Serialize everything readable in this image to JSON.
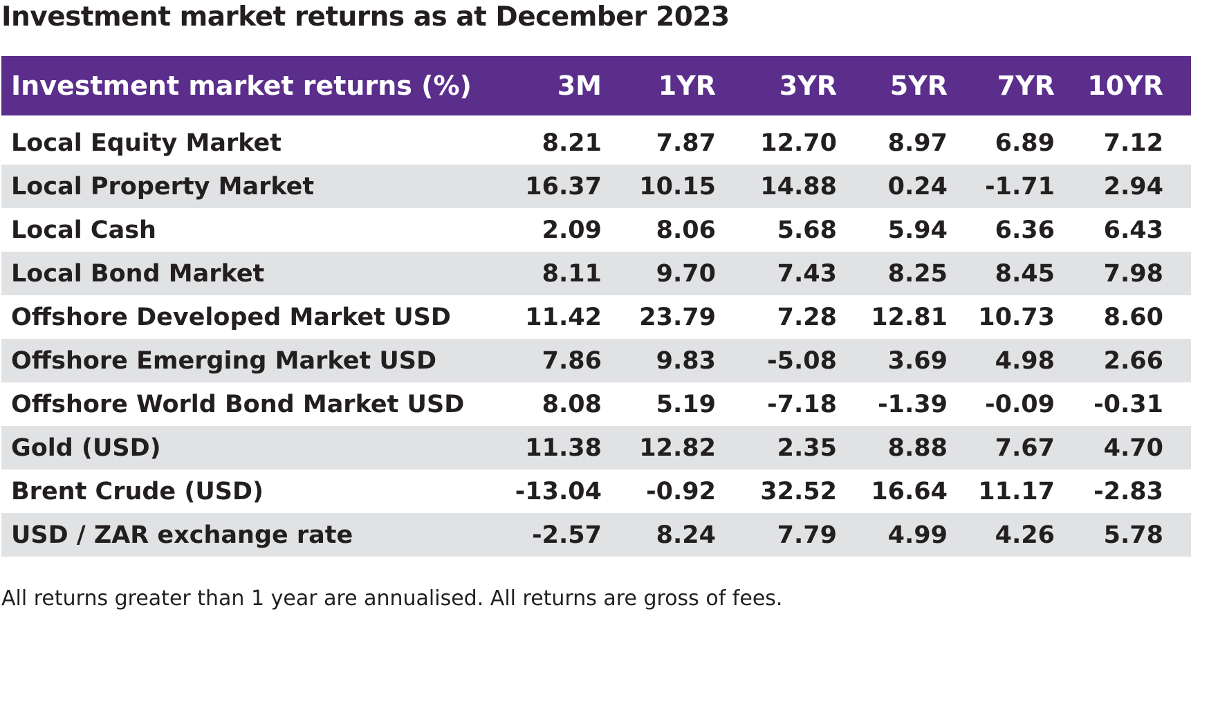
{
  "title": "Investment market returns as at December 2023",
  "table": {
    "header": {
      "label": "Investment market returns (%)",
      "periods": [
        "3M",
        "1YR",
        "3YR",
        "5YR",
        "7YR",
        "10YR"
      ]
    },
    "rows": [
      {
        "name": "Local Equity Market",
        "values": [
          "8.21",
          "7.87",
          "12.70",
          "8.97",
          "6.89",
          "7.12"
        ]
      },
      {
        "name": "Local Property Market",
        "values": [
          "16.37",
          "10.15",
          "14.88",
          "0.24",
          "-1.71",
          "2.94"
        ]
      },
      {
        "name": "Local Cash",
        "values": [
          "2.09",
          "8.06",
          "5.68",
          "5.94",
          "6.36",
          "6.43"
        ]
      },
      {
        "name": "Local Bond Market",
        "values": [
          "8.11",
          "9.70",
          "7.43",
          "8.25",
          "8.45",
          "7.98"
        ]
      },
      {
        "name": "Offshore Developed Market USD",
        "values": [
          "11.42",
          "23.79",
          "7.28",
          "12.81",
          "10.73",
          "8.60"
        ]
      },
      {
        "name": "Offshore Emerging Market USD",
        "values": [
          "7.86",
          "9.83",
          "-5.08",
          "3.69",
          "4.98",
          "2.66"
        ]
      },
      {
        "name": "Offshore World Bond Market USD",
        "values": [
          "8.08",
          "5.19",
          "-7.18",
          "-1.39",
          "-0.09",
          "-0.31"
        ]
      },
      {
        "name": "Gold (USD)",
        "values": [
          "11.38",
          "12.82",
          "2.35",
          "8.88",
          "7.67",
          "4.70"
        ]
      },
      {
        "name": "Brent Crude (USD)",
        "values": [
          "-13.04",
          "-0.92",
          "32.52",
          "16.64",
          "11.17",
          "-2.83"
        ]
      },
      {
        "name": "USD / ZAR exchange rate",
        "values": [
          "-2.57",
          "8.24",
          "7.79",
          "4.99",
          "4.26",
          "5.78"
        ]
      }
    ]
  },
  "footnote": "All returns greater than 1 year are annualised.   All returns are gross of fees.",
  "colors": {
    "header_background": "#5b2e8c",
    "stripe_background": "#e1e2e4",
    "text": "#231f20"
  }
}
